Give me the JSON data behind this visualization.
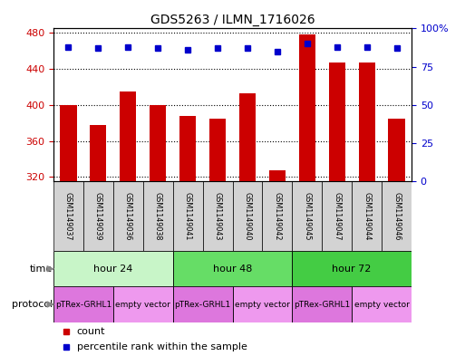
{
  "title": "GDS5263 / ILMN_1716026",
  "samples": [
    "GSM1149037",
    "GSM1149039",
    "GSM1149036",
    "GSM1149038",
    "GSM1149041",
    "GSM1149043",
    "GSM1149040",
    "GSM1149042",
    "GSM1149045",
    "GSM1149047",
    "GSM1149044",
    "GSM1149046"
  ],
  "counts": [
    400,
    378,
    415,
    400,
    388,
    385,
    413,
    328,
    478,
    447,
    447,
    385
  ],
  "percentile_ranks": [
    88,
    87,
    88,
    87,
    86,
    87,
    87,
    85,
    90,
    88,
    88,
    87
  ],
  "ylim_left": [
    315,
    485
  ],
  "ylim_right": [
    0,
    100
  ],
  "yticks_left": [
    320,
    360,
    400,
    440,
    480
  ],
  "yticks_right": [
    0,
    25,
    50,
    75,
    100
  ],
  "time_groups": [
    {
      "label": "hour 24",
      "start": 0,
      "end": 4,
      "color": "#c8f5c8"
    },
    {
      "label": "hour 48",
      "start": 4,
      "end": 8,
      "color": "#66dd66"
    },
    {
      "label": "hour 72",
      "start": 8,
      "end": 12,
      "color": "#44cc44"
    }
  ],
  "protocol_groups": [
    {
      "label": "pTRex-GRHL1",
      "start": 0,
      "end": 2,
      "color": "#dd77dd"
    },
    {
      "label": "empty vector",
      "start": 2,
      "end": 4,
      "color": "#ee99ee"
    },
    {
      "label": "pTRex-GRHL1",
      "start": 4,
      "end": 6,
      "color": "#dd77dd"
    },
    {
      "label": "empty vector",
      "start": 6,
      "end": 8,
      "color": "#ee99ee"
    },
    {
      "label": "pTRex-GRHL1",
      "start": 8,
      "end": 10,
      "color": "#dd77dd"
    },
    {
      "label": "empty vector",
      "start": 10,
      "end": 12,
      "color": "#ee99ee"
    }
  ],
  "bar_color": "#cc0000",
  "dot_color": "#0000cc",
  "bar_width": 0.55,
  "background_color": "#ffffff",
  "sample_bg_color": "#d3d3d3",
  "left_tick_color": "#cc0000",
  "right_tick_color": "#0000cc"
}
